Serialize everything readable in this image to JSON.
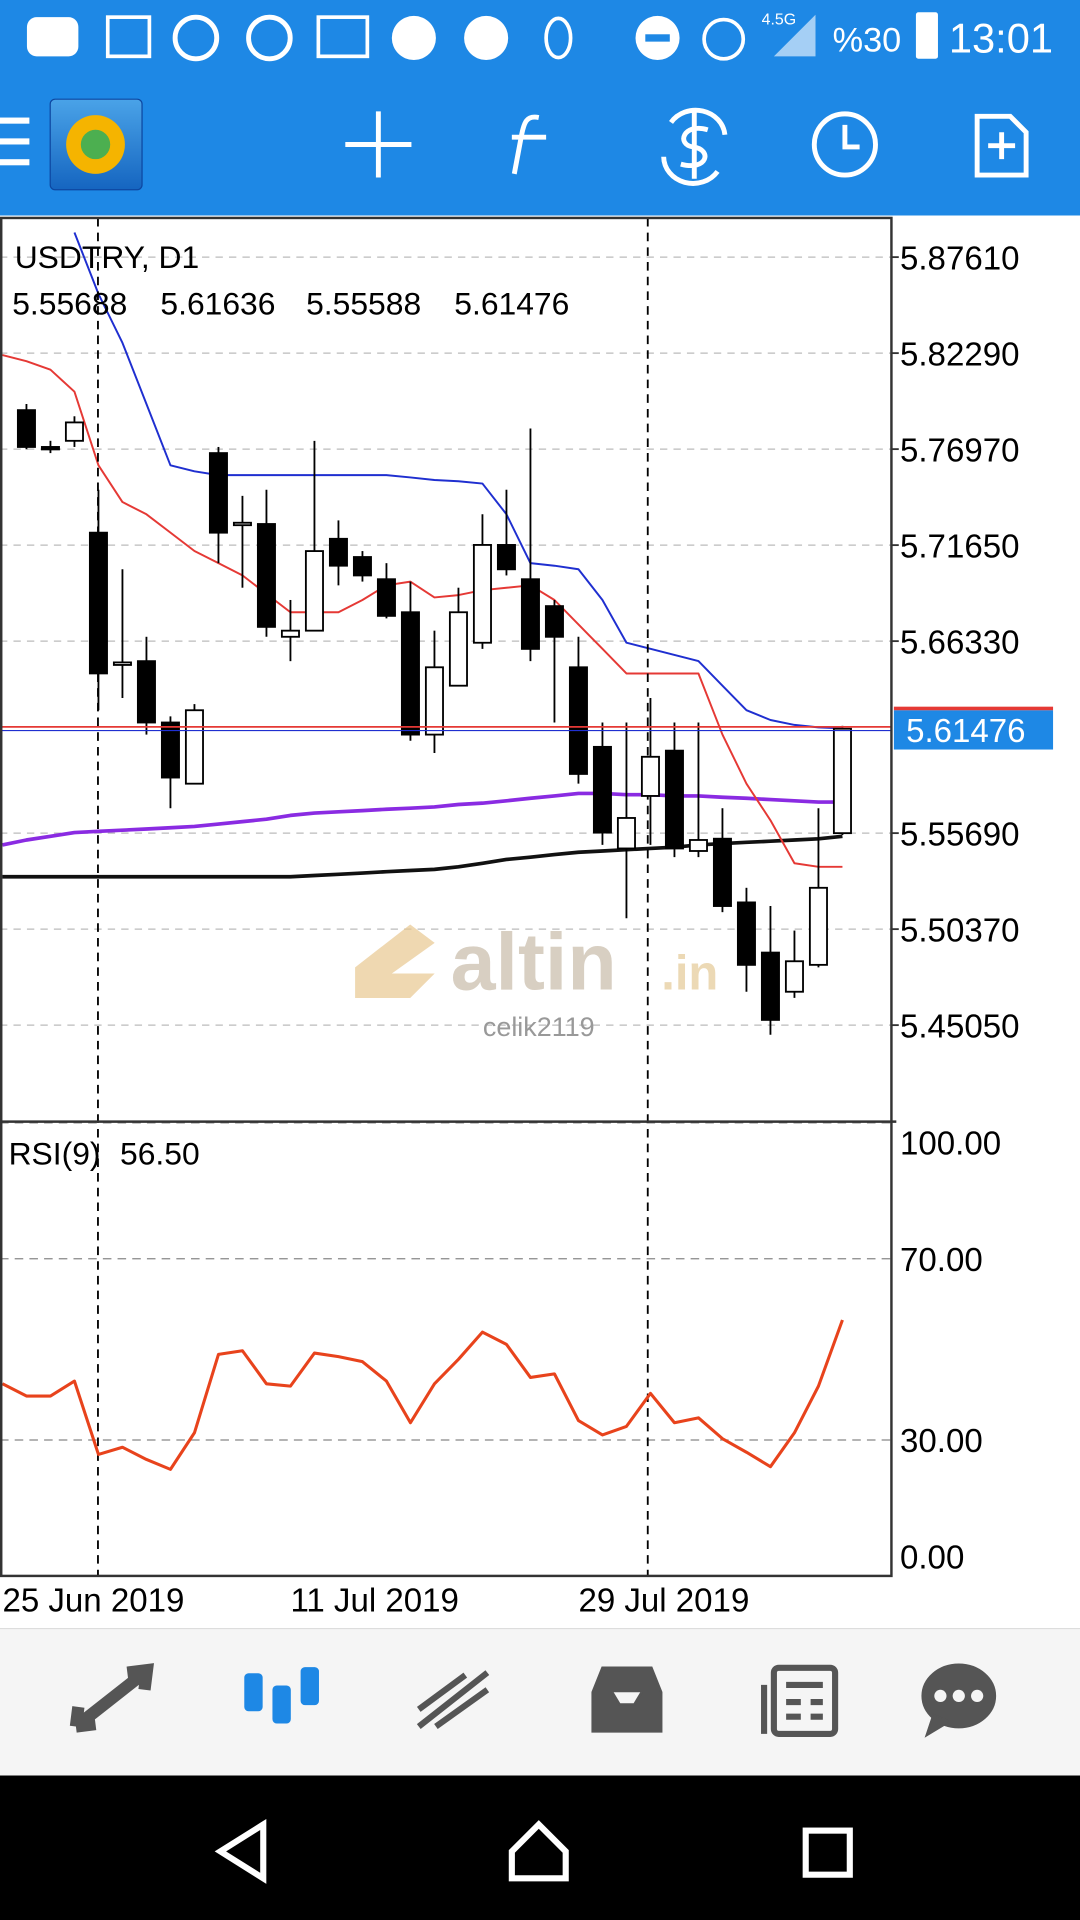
{
  "status_bar": {
    "network": "4.5G",
    "battery": "%30",
    "time": "13:01"
  },
  "watermark": {
    "brand": "altin",
    "tld": ".in",
    "user": "celik2119"
  },
  "chart_data": [
    {
      "type": "candlestick",
      "title": "USDTRY, D1",
      "categories": [
        "25 Jun 2019",
        null,
        null,
        null,
        null,
        null,
        null,
        null,
        null,
        null,
        null,
        null,
        "11 Jul 2019",
        null,
        null,
        null,
        null,
        null,
        null,
        null,
        null,
        null,
        null,
        null,
        "29 Jul 2019",
        null,
        null,
        null,
        null,
        null,
        null,
        null,
        null,
        null,
        null,
        null
      ],
      "open": [
        null,
        5.7913,
        5.7709,
        5.7743,
        5.7234,
        5.6501,
        5.6522,
        5.6182,
        5.5843,
        5.7675,
        5.7282,
        5.7282,
        5.6657,
        5.6691,
        5.72,
        5.7099,
        5.6976,
        5.6793,
        5.6115,
        5.6386,
        5.6624,
        5.7166,
        5.6976,
        5.6827,
        5.6488,
        5.6047,
        5.5484,
        5.5775,
        5.6026,
        5.547,
        5.5538,
        5.5185,
        5.4907,
        5.469,
        5.4839,
        5.55688
      ],
      "high": [
        null,
        5.7947,
        5.7743,
        5.7879,
        5.7472,
        5.7031,
        5.6657,
        5.6216,
        5.6284,
        5.7709,
        5.7438,
        5.7472,
        5.6861,
        5.7743,
        5.7302,
        5.7132,
        5.7065,
        5.6963,
        5.6691,
        5.6929,
        5.7336,
        5.7472,
        5.7811,
        5.6861,
        5.6657,
        5.6182,
        5.6182,
        5.6318,
        5.6182,
        5.6182,
        5.5707,
        5.5266,
        5.5165,
        5.5029,
        5.5707,
        5.61636
      ],
      "low": [
        null,
        5.7696,
        5.7675,
        5.7709,
        5.625,
        5.6318,
        5.6115,
        5.5707,
        5.5843,
        5.7065,
        5.6929,
        5.6657,
        5.6522,
        5.6691,
        5.6942,
        5.6963,
        5.6759,
        5.6081,
        5.6013,
        5.6386,
        5.659,
        5.6997,
        5.6522,
        5.6182,
        5.5843,
        5.5504,
        5.5097,
        5.5504,
        5.5436,
        5.5436,
        5.5131,
        5.469,
        5.4452,
        5.4656,
        5.4825,
        5.55588
      ],
      "close": [
        null,
        5.7709,
        5.7696,
        5.7845,
        5.6454,
        5.6515,
        5.6182,
        5.5877,
        5.625,
        5.7234,
        5.7289,
        5.6712,
        5.6691,
        5.7132,
        5.7051,
        5.6997,
        5.6773,
        5.6115,
        5.6488,
        5.6793,
        5.7166,
        5.7031,
        5.659,
        5.6657,
        5.5897,
        5.5572,
        5.5653,
        5.5992,
        5.5484,
        5.5531,
        5.5165,
        5.4839,
        5.4534,
        5.4859,
        5.5266,
        5.61476
      ],
      "overlays": [
        {
          "color": "#111111",
          "values": [
            5.5327,
            5.5327,
            5.5327,
            5.5327,
            5.5327,
            5.5327,
            5.5327,
            5.5327,
            5.5327,
            5.5327,
            5.5327,
            5.5327,
            5.5327,
            5.5334,
            5.5341,
            5.5348,
            5.5355,
            5.5362,
            5.5368,
            5.5382,
            5.5402,
            5.5423,
            5.5436,
            5.545,
            5.5463,
            5.547,
            5.5477,
            5.5484,
            5.5491,
            5.5504,
            5.5511,
            5.5518,
            5.5524,
            5.5531,
            5.5538,
            5.5551
          ]
        },
        {
          "color": "#8a2be2",
          "values": [
            5.5504,
            5.5531,
            5.5551,
            5.5572,
            5.5579,
            5.5585,
            5.5592,
            5.5599,
            5.5606,
            5.5619,
            5.5633,
            5.5646,
            5.5667,
            5.568,
            5.5687,
            5.5694,
            5.5701,
            5.5707,
            5.5714,
            5.5728,
            5.5735,
            5.5748,
            5.5762,
            5.5775,
            5.5789,
            5.5789,
            5.5782,
            5.5782,
            5.5775,
            5.5775,
            5.5768,
            5.5762,
            5.5755,
            5.5748,
            5.5741,
            5.5741
          ]
        },
        {
          "color": "#e53935",
          "values": [
            5.8218,
            5.8184,
            5.8137,
            5.8015,
            5.7607,
            5.7404,
            5.7336,
            5.7234,
            5.7132,
            5.7065,
            5.6997,
            5.6895,
            5.6793,
            5.6793,
            5.6793,
            5.6861,
            5.6942,
            5.6963,
            5.6875,
            5.6888,
            5.6915,
            5.6929,
            5.6942,
            5.6861,
            5.6725,
            5.659,
            5.6454,
            5.6454,
            5.6454,
            5.6454,
            5.6115,
            5.5843,
            5.564,
            5.5402,
            5.5382,
            5.5382
          ]
        },
        {
          "color": "#1f2fd0",
          "values": [
            null,
            null,
            null,
            5.8897,
            5.8557,
            5.8286,
            5.7947,
            5.7607,
            5.7574,
            5.7553,
            5.7553,
            5.7553,
            5.7553,
            5.7553,
            5.7553,
            5.7553,
            5.7553,
            5.754,
            5.7526,
            5.7519,
            5.7506,
            5.7336,
            5.7065,
            5.7051,
            5.7031,
            5.6861,
            5.6624,
            5.659,
            5.6556,
            5.6522,
            5.6386,
            5.625,
            5.6196,
            5.6169,
            5.6155,
            5.6149
          ]
        }
      ],
      "ylim": [
        5.3977,
        5.8978
      ],
      "yticks": [
        {
          "value": 5.8761,
          "label": "5.87610"
        },
        {
          "value": 5.8229,
          "label": "5.82290"
        },
        {
          "value": 5.7697,
          "label": "5.76970"
        },
        {
          "value": 5.7165,
          "label": "5.71650"
        },
        {
          "value": 5.6633,
          "label": "5.66330"
        },
        {
          "value": 5.5569,
          "label": "5.55690"
        },
        {
          "value": 5.5037,
          "label": "5.50370"
        },
        {
          "value": 5.4505,
          "label": "5.45050"
        }
      ],
      "grid": true
    },
    {
      "type": "line",
      "series": [
        {
          "name": "RSI(9)",
          "color": "#e8431c",
          "values": [
            42.4,
            39.7,
            39.7,
            43.0,
            26.8,
            28.4,
            25.7,
            23.5,
            31.6,
            48.9,
            49.7,
            42.4,
            41.9,
            49.2,
            48.4,
            47.3,
            43.0,
            33.8,
            42.4,
            47.8,
            53.8,
            51.1,
            43.8,
            44.6,
            34.3,
            31.1,
            33.0,
            40.3,
            33.8,
            34.9,
            30.3,
            27.3,
            24.1,
            31.6,
            41.9,
            56.5
          ],
          "value_labels": [
            null,
            null,
            null,
            null,
            null,
            null,
            null,
            null,
            null,
            null,
            null,
            null,
            null,
            null,
            null,
            null,
            null,
            null,
            null,
            null,
            null,
            null,
            null,
            null,
            null,
            null,
            null,
            null,
            null,
            null,
            null,
            null,
            null,
            null,
            null,
            "56.50"
          ]
        }
      ],
      "ylim": [
        0,
        100
      ],
      "yticks": [
        {
          "value": 100,
          "label": "100.00"
        },
        {
          "value": 70,
          "label": "70.00"
        },
        {
          "value": 30,
          "label": "30.00"
        },
        {
          "value": 0,
          "label": "0.00"
        }
      ],
      "grid": true
    }
  ]
}
